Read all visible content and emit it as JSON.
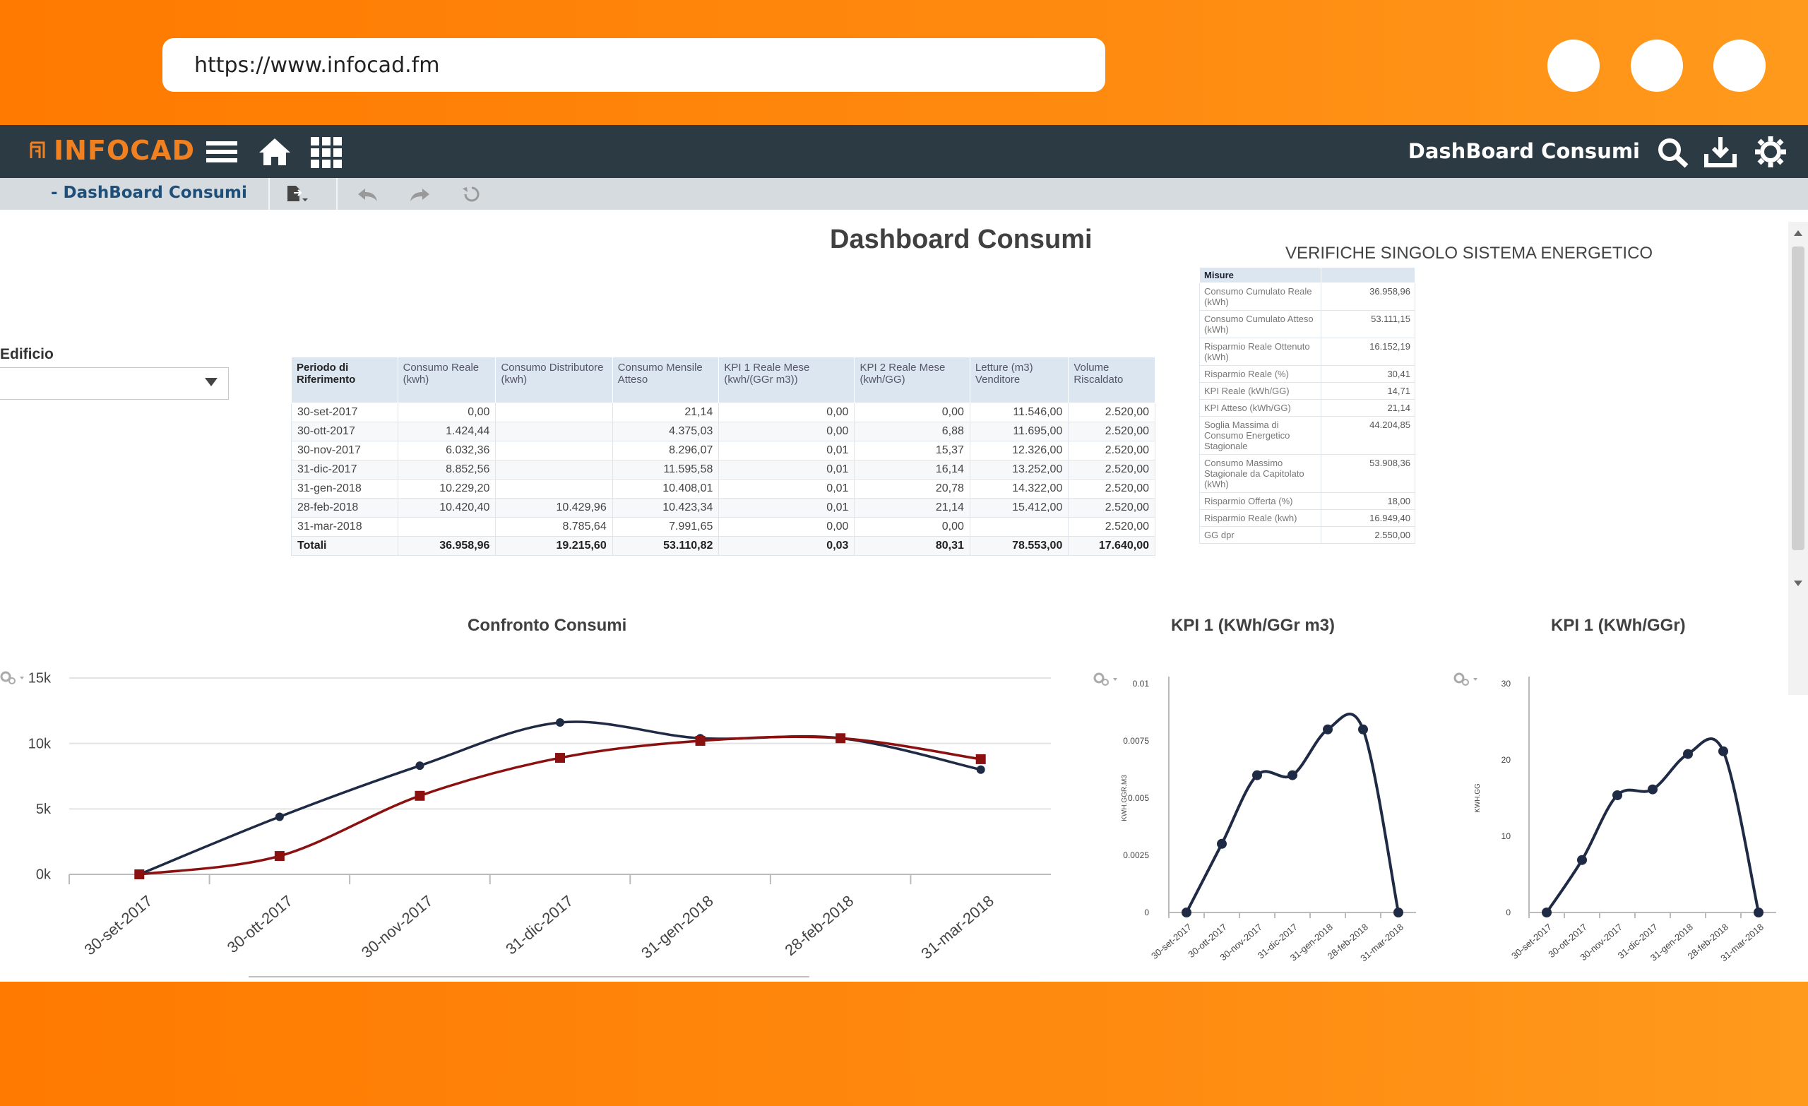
{
  "browser": {
    "url": "https://www.infocad.fm"
  },
  "app": {
    "logo": "INFOCAD",
    "nav_title": "DashBoard Consumi",
    "breadcrumb": "- DashBoard Consumi"
  },
  "colors": {
    "nav_bg": "#2c3a43",
    "logo": "#f08020",
    "frame": "#ff8000",
    "series_real": "#1f2a44",
    "series_expected": "#8b1010"
  },
  "page": {
    "title": "Dashboard Consumi",
    "filter_label": "Edificio",
    "filter_value": ""
  },
  "main_table": {
    "headers": [
      "Periodo di Riferimento",
      "Consumo Reale (kwh)",
      "Consumo Distributore (kwh)",
      "Consumo Mensile Atteso",
      "KPI 1 Reale Mese (kwh/(GGr m3))",
      "KPI 2 Reale Mese (kwh/GG)",
      "Letture (m3) Venditore",
      "Volume Riscaldato"
    ],
    "rows": [
      [
        "30-set-2017",
        "0,00",
        "",
        "21,14",
        "0,00",
        "0,00",
        "11.546,00",
        "2.520,00"
      ],
      [
        "30-ott-2017",
        "1.424,44",
        "",
        "4.375,03",
        "0,00",
        "6,88",
        "11.695,00",
        "2.520,00"
      ],
      [
        "30-nov-2017",
        "6.032,36",
        "",
        "8.296,07",
        "0,01",
        "15,37",
        "12.326,00",
        "2.520,00"
      ],
      [
        "31-dic-2017",
        "8.852,56",
        "",
        "11.595,58",
        "0,01",
        "16,14",
        "13.252,00",
        "2.520,00"
      ],
      [
        "31-gen-2018",
        "10.229,20",
        "",
        "10.408,01",
        "0,01",
        "20,78",
        "14.322,00",
        "2.520,00"
      ],
      [
        "28-feb-2018",
        "10.420,40",
        "10.429,96",
        "10.423,34",
        "0,01",
        "21,14",
        "15.412,00",
        "2.520,00"
      ],
      [
        "31-mar-2018",
        "",
        "8.785,64",
        "7.991,65",
        "0,00",
        "0,00",
        "",
        "2.520,00"
      ]
    ],
    "totals": [
      "Totali",
      "36.958,96",
      "19.215,60",
      "53.110,82",
      "0,03",
      "80,31",
      "78.553,00",
      "17.640,00"
    ]
  },
  "side_table": {
    "title": "VERIFICHE SINGOLO SISTEMA ENERGETICO",
    "header": "Misure",
    "rows": [
      [
        "Consumo Cumulato Reale (kWh)",
        "36.958,96"
      ],
      [
        "Consumo Cumulato Atteso (kWh)",
        "53.111,15"
      ],
      [
        "Risparmio Reale Ottenuto (kWh)",
        "16.152,19"
      ],
      [
        "Risparmio Reale (%)",
        "30,41"
      ],
      [
        "KPI Reale (kWh/GG)",
        "14,71"
      ],
      [
        "KPI Atteso (kWh/GG)",
        "21,14"
      ],
      [
        "Soglia Massima di Consumo Energetico Stagionale",
        "44.204,85"
      ],
      [
        "Consumo Massimo Stagionale da Capitolato (kWh)",
        "53.908,36"
      ],
      [
        "Risparmio Offerta (%)",
        "18,00"
      ],
      [
        "Risparmio Reale (kwh)",
        "16.949,40"
      ],
      [
        "GG dpr",
        "2.550,00"
      ]
    ]
  },
  "chart_data": [
    {
      "type": "line",
      "title": "Confronto Consumi",
      "categories": [
        "30-set-2017",
        "30-ott-2017",
        "30-nov-2017",
        "31-dic-2017",
        "31-gen-2018",
        "28-feb-2018",
        "31-mar-2018"
      ],
      "ylim": [
        0,
        15000
      ],
      "yticks": [
        "0k",
        "5k",
        "10k",
        "15k"
      ],
      "grid": true,
      "series": [
        {
          "values": [
            0,
            4400,
            8300,
            11600,
            10400,
            10400,
            8000
          ],
          "color": "#1f2a44",
          "marker": "circle"
        },
        {
          "values": [
            0,
            1400,
            6000,
            8900,
            10200,
            10400,
            8800
          ],
          "color": "#8b1010",
          "marker": "square"
        }
      ]
    },
    {
      "type": "line",
      "title": "KPI 1 (KWh/GGr m3)",
      "ylabel": "KWH.GGR.M3",
      "categories": [
        "30-set-2017",
        "30-ott-2017",
        "30-nov-2017",
        "31-dic-2017",
        "31-gen-2018",
        "28-feb-2018",
        "31-mar-2018"
      ],
      "ylim": [
        0,
        0.01
      ],
      "yticks": [
        "0",
        "0.0025",
        "0.005",
        "0.0075",
        "0.01"
      ],
      "series": [
        {
          "values": [
            0,
            0.003,
            0.006,
            0.006,
            0.008,
            0.008,
            0
          ],
          "color": "#1f2a44"
        }
      ]
    },
    {
      "type": "line",
      "title": "KPI 1 (KWh/GGr)",
      "ylabel": "KWH.GG",
      "categories": [
        "30-set-2017",
        "30-ott-2017",
        "30-nov-2017",
        "31-dic-2017",
        "31-gen-2018",
        "28-feb-2018",
        "31-mar-2018"
      ],
      "ylim": [
        0,
        30
      ],
      "yticks": [
        "0",
        "10",
        "20",
        "30"
      ],
      "series": [
        {
          "values": [
            0,
            6.88,
            15.37,
            16.14,
            20.78,
            21.14,
            0
          ],
          "color": "#1f2a44"
        }
      ]
    }
  ]
}
